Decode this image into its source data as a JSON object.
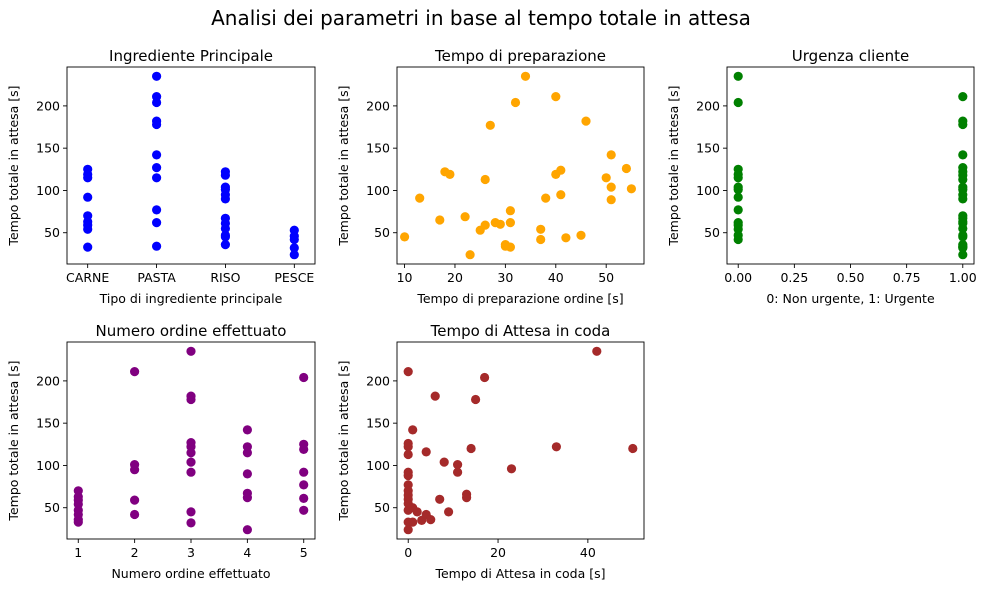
{
  "figure": {
    "title": "Analisi dei parametri in base al tempo totale in attesa"
  },
  "chart_data": [
    {
      "type": "scatter",
      "title": "Ingrediente Principale",
      "xlabel": "Tipo di ingrediente principale",
      "ylabel": "Tempo totale in attesa [s]",
      "color": "#0000ff",
      "xlim": [
        -0.3,
        3.3
      ],
      "ylim": [
        13,
        246
      ],
      "xticks": [
        0,
        1,
        2,
        3
      ],
      "xticklabels": [
        "CARNE",
        "PASTA",
        "RISO",
        "PESCE"
      ],
      "yticks": [
        50,
        100,
        150,
        200
      ],
      "yticklabels": [
        "50",
        "100",
        "150",
        "200"
      ],
      "points": [
        [
          0,
          125
        ],
        [
          0,
          119
        ],
        [
          0,
          115
        ],
        [
          0,
          92
        ],
        [
          0,
          70
        ],
        [
          0,
          63
        ],
        [
          0,
          59
        ],
        [
          0,
          54
        ],
        [
          0,
          33
        ],
        [
          1,
          235
        ],
        [
          1,
          211
        ],
        [
          1,
          204
        ],
        [
          1,
          182
        ],
        [
          1,
          178
        ],
        [
          1,
          142
        ],
        [
          1,
          127
        ],
        [
          1,
          115
        ],
        [
          1,
          77
        ],
        [
          1,
          62
        ],
        [
          1,
          34
        ],
        [
          2,
          122
        ],
        [
          2,
          118
        ],
        [
          2,
          104
        ],
        [
          2,
          101
        ],
        [
          2,
          95
        ],
        [
          2,
          90
        ],
        [
          2,
          67
        ],
        [
          2,
          61
        ],
        [
          2,
          55
        ],
        [
          2,
          47
        ],
        [
          2,
          45
        ],
        [
          2,
          36
        ],
        [
          3,
          53
        ],
        [
          3,
          46
        ],
        [
          3,
          42
        ],
        [
          3,
          32
        ],
        [
          3,
          24
        ]
      ]
    },
    {
      "type": "scatter",
      "title": "Tempo di preparazione",
      "xlabel": "Tempo di preparazione ordine [s]",
      "ylabel": "Tempo totale in attesa [s]",
      "color": "#ffa500",
      "xlim": [
        8.5,
        57.5
      ],
      "ylim": [
        13,
        246
      ],
      "xticks": [
        10,
        20,
        30,
        40,
        50
      ],
      "xticklabels": [
        "10",
        "20",
        "30",
        "40",
        "50"
      ],
      "yticks": [
        50,
        100,
        150,
        200
      ],
      "yticklabels": [
        "50",
        "100",
        "150",
        "200"
      ],
      "points": [
        [
          10,
          45
        ],
        [
          13,
          91
        ],
        [
          17,
          65
        ],
        [
          18,
          122
        ],
        [
          19,
          119
        ],
        [
          22,
          69
        ],
        [
          23,
          24
        ],
        [
          25,
          53
        ],
        [
          26,
          59
        ],
        [
          26,
          113
        ],
        [
          27,
          177
        ],
        [
          28,
          62
        ],
        [
          29,
          60
        ],
        [
          30,
          36
        ],
        [
          30,
          34
        ],
        [
          31,
          33
        ],
        [
          31,
          62
        ],
        [
          31,
          76
        ],
        [
          32,
          204
        ],
        [
          34,
          235
        ],
        [
          37,
          54
        ],
        [
          37,
          42
        ],
        [
          38,
          91
        ],
        [
          40,
          211
        ],
        [
          40,
          119
        ],
        [
          41,
          124
        ],
        [
          41,
          95
        ],
        [
          42,
          44
        ],
        [
          45,
          47
        ],
        [
          46,
          182
        ],
        [
          50,
          115
        ],
        [
          51,
          142
        ],
        [
          51,
          104
        ],
        [
          51,
          89
        ],
        [
          54,
          126
        ],
        [
          55,
          102
        ]
      ]
    },
    {
      "type": "scatter",
      "title": "Urgenza cliente",
      "xlabel": "0: Non urgente, 1: Urgente",
      "ylabel": "Tempo totale in attesa [s]",
      "color": "#008000",
      "xlim": [
        -0.05,
        1.05
      ],
      "ylim": [
        13,
        246
      ],
      "xticks": [
        0,
        0.25,
        0.5,
        0.75,
        1
      ],
      "xticklabels": [
        "0.00",
        "0.25",
        "0.50",
        "0.75",
        "1.00"
      ],
      "yticks": [
        50,
        100,
        150,
        200
      ],
      "yticklabels": [
        "50",
        "100",
        "150",
        "200"
      ],
      "points": [
        [
          0,
          235
        ],
        [
          0,
          204
        ],
        [
          0,
          125
        ],
        [
          0,
          119
        ],
        [
          0,
          115
        ],
        [
          0,
          104
        ],
        [
          0,
          101
        ],
        [
          0,
          92
        ],
        [
          0,
          77
        ],
        [
          0,
          62
        ],
        [
          0,
          59
        ],
        [
          0,
          54
        ],
        [
          0,
          47
        ],
        [
          0,
          42
        ],
        [
          1,
          211
        ],
        [
          1,
          182
        ],
        [
          1,
          178
        ],
        [
          1,
          142
        ],
        [
          1,
          127
        ],
        [
          1,
          122
        ],
        [
          1,
          118
        ],
        [
          1,
          113
        ],
        [
          1,
          104
        ],
        [
          1,
          101
        ],
        [
          1,
          95
        ],
        [
          1,
          90
        ],
        [
          1,
          70
        ],
        [
          1,
          67
        ],
        [
          1,
          63
        ],
        [
          1,
          61
        ],
        [
          1,
          55
        ],
        [
          1,
          47
        ],
        [
          1,
          45
        ],
        [
          1,
          36
        ],
        [
          1,
          34
        ],
        [
          1,
          33
        ],
        [
          1,
          32
        ],
        [
          1,
          24
        ]
      ]
    },
    {
      "type": "scatter",
      "title": "Numero ordine effettuato",
      "xlabel": "Numero ordine effettuato",
      "ylabel": "Tempo totale in attesa [s]",
      "color": "#800080",
      "xlim": [
        0.8,
        5.2
      ],
      "ylim": [
        13,
        246
      ],
      "xticks": [
        1,
        2,
        3,
        4,
        5
      ],
      "xticklabels": [
        "1",
        "2",
        "3",
        "4",
        "5"
      ],
      "yticks": [
        50,
        100,
        150,
        200
      ],
      "yticklabels": [
        "50",
        "100",
        "150",
        "200"
      ],
      "points": [
        [
          1,
          70
        ],
        [
          1,
          63
        ],
        [
          1,
          59
        ],
        [
          1,
          54
        ],
        [
          1,
          47
        ],
        [
          1,
          42
        ],
        [
          1,
          36
        ],
        [
          1,
          33
        ],
        [
          2,
          211
        ],
        [
          2,
          101
        ],
        [
          2,
          95
        ],
        [
          2,
          59
        ],
        [
          2,
          42
        ],
        [
          3,
          235
        ],
        [
          3,
          182
        ],
        [
          3,
          178
        ],
        [
          3,
          127
        ],
        [
          3,
          122
        ],
        [
          3,
          115
        ],
        [
          3,
          104
        ],
        [
          3,
          92
        ],
        [
          3,
          45
        ],
        [
          3,
          32
        ],
        [
          4,
          142
        ],
        [
          4,
          122
        ],
        [
          4,
          115
        ],
        [
          4,
          90
        ],
        [
          4,
          67
        ],
        [
          4,
          62
        ],
        [
          4,
          24
        ],
        [
          5,
          204
        ],
        [
          5,
          125
        ],
        [
          5,
          119
        ],
        [
          5,
          92
        ],
        [
          5,
          77
        ],
        [
          5,
          61
        ],
        [
          5,
          47
        ]
      ]
    },
    {
      "type": "scatter",
      "title": "Tempo di Attesa in coda",
      "xlabel": "Tempo di Attesa in coda [s]",
      "ylabel": "Tempo totale in attesa [s]",
      "color": "#a52a2a",
      "xlim": [
        -2.5,
        52.5
      ],
      "ylim": [
        13,
        246
      ],
      "xticks": [
        0,
        20,
        40
      ],
      "xticklabels": [
        "0",
        "20",
        "40"
      ],
      "yticks": [
        50,
        100,
        150,
        200
      ],
      "yticklabels": [
        "50",
        "100",
        "150",
        "200"
      ],
      "points": [
        [
          0,
          211
        ],
        [
          0,
          126
        ],
        [
          0,
          122
        ],
        [
          0,
          113
        ],
        [
          0,
          92
        ],
        [
          0,
          88
        ],
        [
          0,
          77
        ],
        [
          0,
          70
        ],
        [
          0,
          65
        ],
        [
          0,
          60
        ],
        [
          0,
          55
        ],
        [
          0,
          47
        ],
        [
          0,
          33
        ],
        [
          0,
          24
        ],
        [
          1,
          142
        ],
        [
          1,
          50
        ],
        [
          1,
          33
        ],
        [
          2,
          45
        ],
        [
          3,
          35
        ],
        [
          4,
          116
        ],
        [
          4,
          42
        ],
        [
          5,
          36
        ],
        [
          6,
          182
        ],
        [
          7,
          60
        ],
        [
          8,
          104
        ],
        [
          9,
          45
        ],
        [
          11,
          101
        ],
        [
          11,
          92
        ],
        [
          13,
          66
        ],
        [
          13,
          62
        ],
        [
          14,
          120
        ],
        [
          15,
          178
        ],
        [
          17,
          204
        ],
        [
          23,
          96
        ],
        [
          33,
          122
        ],
        [
          42,
          235
        ],
        [
          50,
          120
        ]
      ]
    }
  ]
}
